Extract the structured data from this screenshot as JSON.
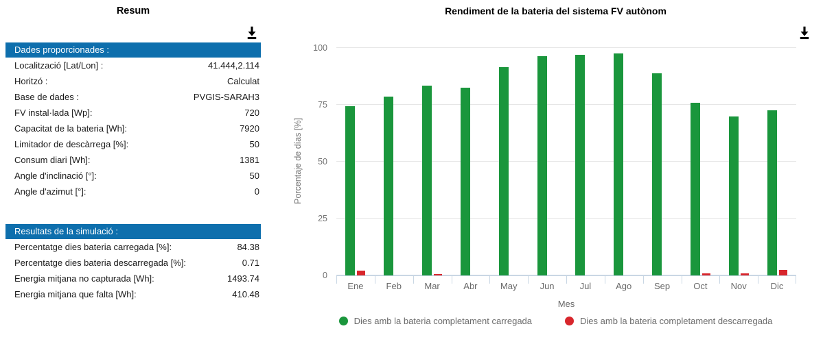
{
  "summary": {
    "title": "Resum",
    "sections": [
      {
        "header": "Dades proporcionades :",
        "rows": [
          {
            "label": "Localització [Lat/Lon] :",
            "value": "41.444,2.114"
          },
          {
            "label": "Horitzó :",
            "value": "Calculat"
          },
          {
            "label": "Base de dades :",
            "value": "PVGIS-SARAH3"
          },
          {
            "label": "FV instal·lada [Wp]:",
            "value": "720"
          },
          {
            "label": "Capacitat de la bateria [Wh]:",
            "value": "7920"
          },
          {
            "label": "Limitador de descàrrega [%]:",
            "value": "50"
          },
          {
            "label": "Consum diari [Wh]:",
            "value": "1381"
          },
          {
            "label": "Angle d'inclinació [°]:",
            "value": "50"
          },
          {
            "label": "Angle d'azimut [°]:",
            "value": "0"
          }
        ]
      },
      {
        "header": "Resultats de la simulació :",
        "rows": [
          {
            "label": "Percentatge dies bateria carregada [%]:",
            "value": "84.38"
          },
          {
            "label": "Percentatge dies bateria descarregada [%]:",
            "value": "0.71"
          },
          {
            "label": "Energia mitjana no capturada [Wh]:",
            "value": "1493.74"
          },
          {
            "label": "Energia mitjana que falta [Wh]:",
            "value": "410.48"
          }
        ]
      }
    ]
  },
  "chart_data": {
    "type": "bar",
    "title": "Rendiment de la bateria del sistema FV autònom",
    "categories": [
      "Ene",
      "Feb",
      "Mar",
      "Abr",
      "May",
      "Jun",
      "Jul",
      "Ago",
      "Sep",
      "Oct",
      "Nov",
      "Dic"
    ],
    "series": [
      {
        "name": "Dies amb la bateria completament carregada",
        "color": "#1a963c",
        "values": [
          74.5,
          78.5,
          83.5,
          82.5,
          91.5,
          96.5,
          97,
          97.5,
          89,
          76,
          70,
          72.5
        ]
      },
      {
        "name": "Dies amb la bateria completament descarregada",
        "color": "#d8262c",
        "values": [
          2.2,
          0,
          0.5,
          0,
          0,
          0,
          0,
          0,
          0,
          1,
          1,
          2.3
        ]
      }
    ],
    "xlabel": "Mes",
    "ylabel": "Porcentaje de días [%]",
    "ylim": [
      0,
      100
    ],
    "yticks": [
      0,
      25,
      50,
      75,
      100
    ],
    "grid": true,
    "legend_position": "bottom"
  },
  "icons": {
    "download": "download-icon"
  },
  "colors": {
    "header_blue": "#0e6fad",
    "axis_line": "#c9d7e4",
    "grid_line": "#e6e6e6"
  }
}
